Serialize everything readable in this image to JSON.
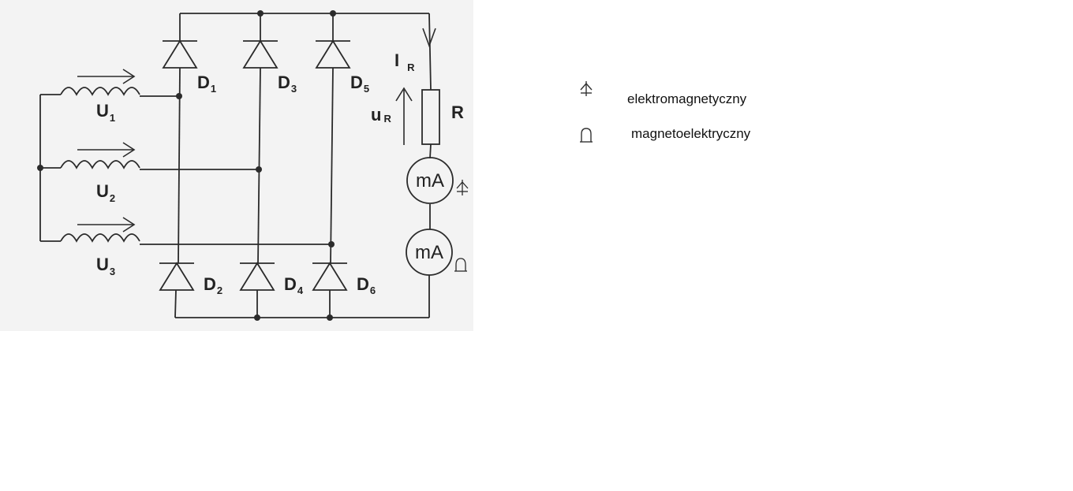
{
  "diagram": {
    "windings": [
      {
        "name": "U",
        "sub": "1"
      },
      {
        "name": "U",
        "sub": "2"
      },
      {
        "name": "U",
        "sub": "3"
      }
    ],
    "diodes": [
      {
        "name": "D",
        "sub": "1"
      },
      {
        "name": "D",
        "sub": "2"
      },
      {
        "name": "D",
        "sub": "3"
      },
      {
        "name": "D",
        "sub": "4"
      },
      {
        "name": "D",
        "sub": "5"
      },
      {
        "name": "D",
        "sub": "6"
      }
    ],
    "current": {
      "name": "I",
      "sub": "R"
    },
    "voltage": {
      "name": "u",
      "sub": "R"
    },
    "resistor": "R",
    "meters": [
      {
        "label": "mA",
        "type_icon": "electromagnetic-meter-icon"
      },
      {
        "label": "mA",
        "type_icon": "magnetoelectric-meter-icon"
      }
    ]
  },
  "legend": [
    {
      "icon": "electromagnetic-meter-icon",
      "text": "elektromagnetyczny"
    },
    {
      "icon": "magnetoelectric-meter-icon",
      "text": "magnetoelektryczny"
    }
  ]
}
